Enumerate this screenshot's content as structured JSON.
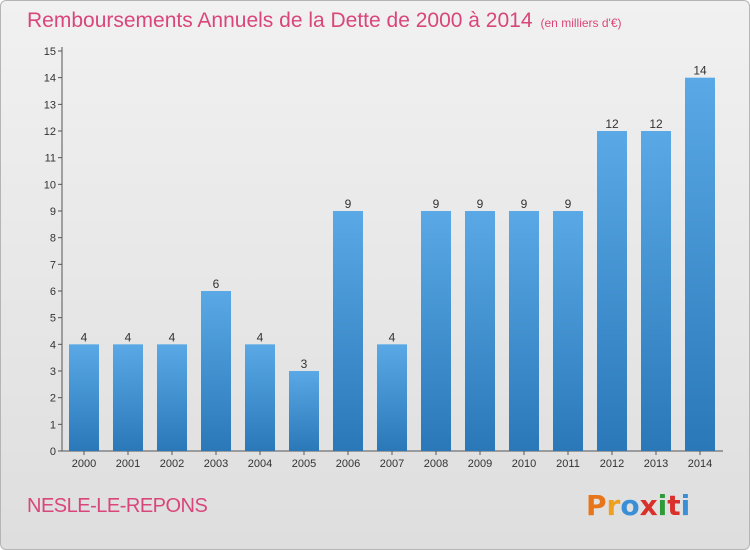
{
  "title": "Remboursements Annuels de la Dette de 2000 à 2014",
  "unit": "(en milliers d'€)",
  "commune": "NESLE-LE-REPONS",
  "brand": {
    "letters": [
      "P",
      "r",
      "o",
      "x",
      "i",
      "t",
      "i"
    ],
    "colors": [
      "#e8751a",
      "#f0a020",
      "#3a8fd6",
      "#d9302c",
      "#2e9a3a",
      "#d9302c",
      "#3a8fd6"
    ]
  },
  "colors": {
    "bar_top": "#5aa9e6",
    "bar_bottom": "#2a78b8",
    "title": "#d9467a"
  },
  "chart_data": {
    "type": "bar",
    "categories": [
      "2000",
      "2001",
      "2002",
      "2003",
      "2004",
      "2005",
      "2006",
      "2007",
      "2008",
      "2009",
      "2010",
      "2011",
      "2012",
      "2013",
      "2014"
    ],
    "values": [
      4,
      4,
      4,
      6,
      4,
      3,
      9,
      4,
      9,
      9,
      9,
      9,
      12,
      12,
      14
    ],
    "data_labels": [
      "4",
      "4",
      "4",
      "6",
      "4",
      "3",
      "9",
      "4",
      "9",
      "9",
      "9",
      "9",
      "12",
      "12",
      "14"
    ],
    "yticks": [
      "0",
      "1",
      "2",
      "3",
      "4",
      "5",
      "6",
      "7",
      "8",
      "9",
      "10",
      "11",
      "12",
      "13",
      "14",
      "15"
    ],
    "ylim": [
      0,
      15
    ],
    "grid": false,
    "legend": "none"
  }
}
